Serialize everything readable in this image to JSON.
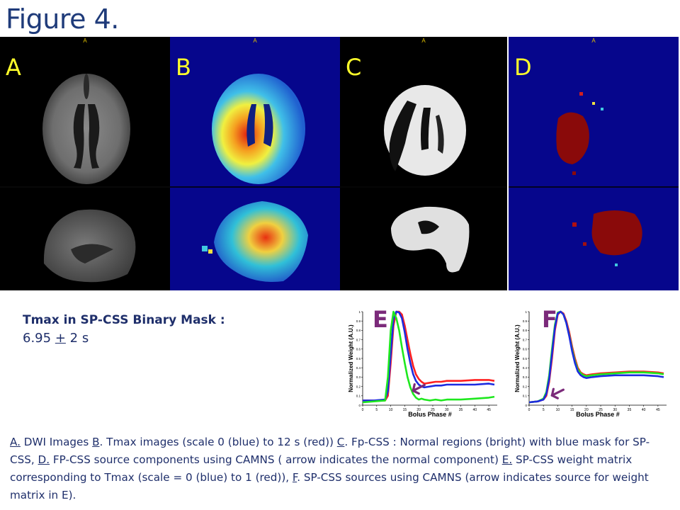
{
  "figure_title": "Figure 4.",
  "panels": [
    {
      "letter": "A",
      "orientation_label": "A"
    },
    {
      "letter": "B",
      "orientation_label": "A"
    },
    {
      "letter": "C",
      "orientation_label": "A"
    },
    {
      "letter": "D",
      "orientation_label": "A"
    }
  ],
  "tmax": {
    "title": "Tmax in SP-CSS Binary Mask :",
    "value": "6.95",
    "pm": "+",
    "sd": "2 s"
  },
  "colors": {
    "title": "#1f3b7a",
    "text": "#1f2f6b",
    "panel_letter": "#ffff2a",
    "chart_letter": "#7b2a7a",
    "red_series": "#ff2020",
    "blue_series": "#1c2be0",
    "green_series": "#1ee81e"
  },
  "chart_data": [
    {
      "type": "line",
      "letter": "E",
      "xlabel": "Bolus Phase #",
      "ylabel": "Normalized Weight (A.U.)",
      "xlim": [
        0,
        48
      ],
      "ylim": [
        0,
        1
      ],
      "xticks": [
        "0",
        "5",
        "10",
        "15",
        "20",
        "25",
        "30",
        "35",
        "40",
        "45"
      ],
      "yticks": [
        "0",
        "0.1",
        "0.2",
        "0.3",
        "0.4",
        "0.5",
        "0.6",
        "0.7",
        "0.8",
        "0.9",
        "1"
      ],
      "series": [
        {
          "color": "red",
          "x": [
            0,
            4,
            8,
            9,
            10,
            11,
            12,
            13,
            14,
            15,
            16,
            17,
            18,
            19,
            20,
            21,
            22,
            24,
            26,
            28,
            30,
            35,
            40,
            45,
            47
          ],
          "y": [
            0.05,
            0.05,
            0.05,
            0.1,
            0.45,
            0.85,
            1.0,
            1.0,
            0.97,
            0.85,
            0.7,
            0.55,
            0.42,
            0.33,
            0.28,
            0.25,
            0.23,
            0.24,
            0.25,
            0.25,
            0.26,
            0.26,
            0.27,
            0.27,
            0.26
          ]
        },
        {
          "color": "blue",
          "x": [
            0,
            4,
            8,
            9,
            10,
            11,
            12,
            13,
            14,
            15,
            16,
            17,
            18,
            19,
            20,
            21,
            22,
            24,
            26,
            28,
            30,
            35,
            40,
            45,
            47
          ],
          "y": [
            0.05,
            0.05,
            0.06,
            0.15,
            0.55,
            0.92,
            1.0,
            0.99,
            0.93,
            0.78,
            0.6,
            0.45,
            0.33,
            0.26,
            0.22,
            0.2,
            0.19,
            0.2,
            0.21,
            0.21,
            0.22,
            0.22,
            0.22,
            0.23,
            0.22
          ]
        },
        {
          "color": "green",
          "x": [
            0,
            4,
            8,
            9,
            10,
            11,
            12,
            13,
            14,
            15,
            16,
            17,
            18,
            19,
            20,
            21,
            22,
            24,
            26,
            28,
            30,
            35,
            40,
            45,
            47
          ],
          "y": [
            0.03,
            0.04,
            0.05,
            0.3,
            0.8,
            1.0,
            0.93,
            0.8,
            0.62,
            0.45,
            0.3,
            0.19,
            0.12,
            0.08,
            0.06,
            0.07,
            0.06,
            0.05,
            0.06,
            0.05,
            0.06,
            0.06,
            0.07,
            0.08,
            0.09
          ]
        }
      ]
    },
    {
      "type": "line",
      "letter": "F",
      "xlabel": "Bolus Phase #",
      "ylabel": "Normalized Weight (A.U.)",
      "xlim": [
        0,
        48
      ],
      "ylim": [
        0,
        1
      ],
      "xticks": [
        "0",
        "5",
        "10",
        "15",
        "20",
        "25",
        "30",
        "35",
        "40",
        "45"
      ],
      "yticks": [
        "0",
        "0.1",
        "0.2",
        "0.3",
        "0.4",
        "0.5",
        "0.6",
        "0.7",
        "0.8",
        "0.9",
        "1"
      ],
      "series": [
        {
          "color": "red",
          "x": [
            0,
            3,
            5,
            6,
            7,
            8,
            9,
            10,
            11,
            12,
            13,
            14,
            15,
            16,
            17,
            18,
            19,
            20,
            22,
            25,
            30,
            35,
            40,
            45,
            47
          ],
          "y": [
            0.03,
            0.04,
            0.06,
            0.1,
            0.25,
            0.5,
            0.8,
            0.97,
            1.0,
            0.98,
            0.9,
            0.78,
            0.63,
            0.5,
            0.4,
            0.35,
            0.33,
            0.32,
            0.33,
            0.34,
            0.35,
            0.36,
            0.36,
            0.35,
            0.34
          ]
        },
        {
          "color": "green",
          "x": [
            0,
            3,
            5,
            6,
            7,
            8,
            9,
            10,
            11,
            12,
            13,
            14,
            15,
            16,
            17,
            18,
            19,
            20,
            22,
            25,
            30,
            35,
            40,
            45,
            47
          ],
          "y": [
            0.03,
            0.04,
            0.07,
            0.14,
            0.32,
            0.6,
            0.86,
            0.99,
            1.0,
            0.97,
            0.88,
            0.75,
            0.6,
            0.47,
            0.38,
            0.34,
            0.32,
            0.31,
            0.32,
            0.33,
            0.34,
            0.35,
            0.35,
            0.34,
            0.33
          ]
        },
        {
          "color": "blue",
          "x": [
            0,
            3,
            5,
            6,
            7,
            8,
            9,
            10,
            11,
            12,
            13,
            14,
            15,
            16,
            17,
            18,
            19,
            20,
            22,
            25,
            30,
            35,
            40,
            45,
            47
          ],
          "y": [
            0.03,
            0.04,
            0.06,
            0.12,
            0.28,
            0.55,
            0.83,
            0.98,
            1.0,
            0.97,
            0.88,
            0.74,
            0.58,
            0.45,
            0.36,
            0.32,
            0.3,
            0.29,
            0.3,
            0.31,
            0.32,
            0.32,
            0.32,
            0.31,
            0.3
          ]
        }
      ]
    }
  ],
  "caption": {
    "a_label": "A.",
    "a_text": " DWI Images    ",
    "b_label": "B",
    "b_text": ". Tmax images (scale 0 (blue) to 12 s (red))  ",
    "c_label": "C",
    "c_text": ". Fp-CSS : Normal regions (bright) with blue mask for SP-CSS, ",
    "d_label": "D.",
    "d_text": " FP-CSS source components using CAMNS ( arrow indicates the normal component) ",
    "e_label": "E.",
    "e_text": " SP-CSS weight matrix corresponding to Tmax (scale  = 0 (blue) to 1 (red)),  ",
    "f_label": "F",
    "f_text": ". SP-CSS sources using CAMNS (arrow indicates source for weight matrix in E)."
  }
}
